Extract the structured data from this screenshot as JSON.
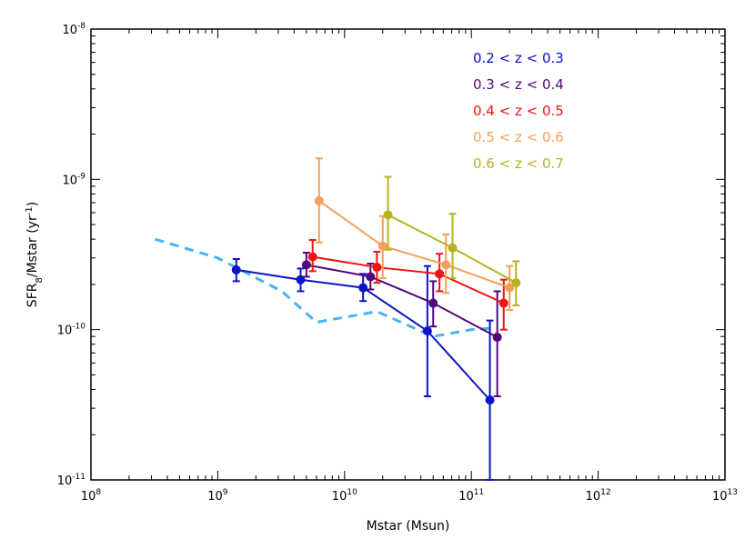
{
  "chart_data": {
    "type": "line",
    "xlabel": "Mstar (Msun)",
    "ylabel": {
      "pre": "SFR",
      "sub": "8",
      "mid": "/Mstar (yr",
      "sup": "-1",
      "post": ")"
    },
    "xscale": "log",
    "yscale": "log",
    "xlim": [
      100000000.0,
      10000000000000.0
    ],
    "ylim": [
      1e-11,
      1e-08
    ],
    "x_ticks": [
      {
        "value": 100000000.0,
        "base": "10",
        "exp": "8"
      },
      {
        "value": 1000000000.0,
        "base": "10",
        "exp": "9"
      },
      {
        "value": 10000000000.0,
        "base": "10",
        "exp": "10"
      },
      {
        "value": 100000000000.0,
        "base": "10",
        "exp": "11"
      },
      {
        "value": 1000000000000.0,
        "base": "10",
        "exp": "12"
      },
      {
        "value": 10000000000000.0,
        "base": "10",
        "exp": "13"
      }
    ],
    "y_ticks": [
      {
        "value": 1e-11,
        "base": "10",
        "exp": "-11"
      },
      {
        "value": 1e-10,
        "base": "10",
        "exp": "-10"
      },
      {
        "value": 1e-09,
        "base": "10",
        "exp": "-9"
      },
      {
        "value": 1e-08,
        "base": "10",
        "exp": "-8"
      }
    ],
    "grid": false,
    "legend_position": "top-right",
    "series": [
      {
        "name": "0.2 < z < 0.3",
        "color": "#0a14c8",
        "x": [
          1400000000.0,
          4500000000.0,
          14000000000.0,
          45000000000.0,
          140000000000.0
        ],
        "y": [
          2.5e-10,
          2.15e-10,
          1.9e-10,
          9.8e-11,
          3.4e-11
        ],
        "yerr_low": [
          2.1e-10,
          1.8e-10,
          1.55e-10,
          3.6e-11,
          1e-11
        ],
        "yerr_high": [
          2.95e-10,
          2.55e-10,
          2.35e-10,
          2.65e-10,
          1.15e-10
        ]
      },
      {
        "name": "0.3 < z < 0.4",
        "color": "#50087a",
        "x": [
          5000000000.0,
          16000000000.0,
          50000000000.0,
          160000000000.0
        ],
        "y": [
          2.7e-10,
          2.25e-10,
          1.5e-10,
          8.9e-11
        ],
        "yerr_low": [
          2.25e-10,
          1.85e-10,
          1.05e-10,
          3.6e-11
        ],
        "yerr_high": [
          3.25e-10,
          2.75e-10,
          2.1e-10,
          1.8e-10
        ]
      },
      {
        "name": "0.4 < z < 0.5",
        "color": "#f01414",
        "x": [
          5600000000.0,
          18000000000.0,
          56000000000.0,
          180000000000.0
        ],
        "y": [
          3.05e-10,
          2.6e-10,
          2.35e-10,
          1.5e-10
        ],
        "yerr_low": [
          2.45e-10,
          2.05e-10,
          1.8e-10,
          1e-10
        ],
        "yerr_high": [
          3.95e-10,
          3.3e-10,
          3.2e-10,
          2.15e-10
        ]
      },
      {
        "name": "0.5 < z < 0.6",
        "color": "#f5a05a",
        "x": [
          6300000000.0,
          20000000000.0,
          63000000000.0,
          200000000000.0
        ],
        "y": [
          7.2e-10,
          3.6e-10,
          2.7e-10,
          1.9e-10
        ],
        "yerr_low": [
          3.8e-10,
          2.2e-10,
          1.75e-10,
          1.35e-10
        ],
        "yerr_high": [
          1.38e-09,
          5.7e-10,
          4.3e-10,
          2.65e-10
        ]
      },
      {
        "name": "0.6 < z < 0.7",
        "color": "#b4b41e",
        "x": [
          22000000000.0,
          71000000000.0,
          225000000000.0
        ],
        "y": [
          5.8e-10,
          3.5e-10,
          2.05e-10
        ],
        "yerr_low": [
          3.4e-10,
          2.2e-10,
          1.45e-10
        ],
        "yerr_high": [
          1.04e-09,
          5.9e-10,
          2.85e-10
        ]
      }
    ],
    "reference_line": {
      "style": "dashed",
      "color": "#46b4f0",
      "x": [
        320000000.0,
        1000000000.0,
        3200000000.0,
        6000000000.0,
        18000000000.0,
        50000000000.0,
        100000000000.0,
        140000000000.0
      ],
      "y": [
        4e-10,
        3e-10,
        1.8e-10,
        1.12e-10,
        1.32e-10,
        9e-11,
        1e-10,
        1.02e-10
      ]
    }
  }
}
